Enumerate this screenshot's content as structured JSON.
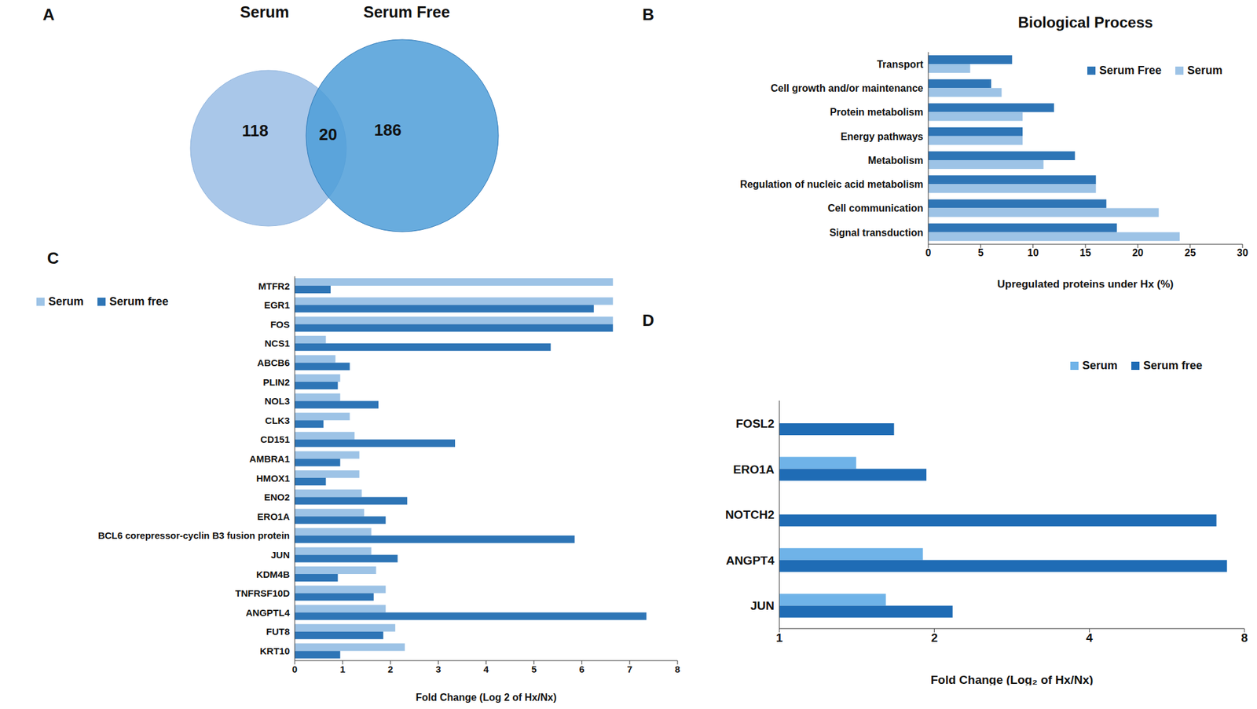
{
  "chart_data": [
    {
      "type": "venn",
      "panel": "A",
      "sets": [
        {
          "name": "Serum",
          "only": 118,
          "color": "#a9c7e9"
        },
        {
          "name": "Serum Free",
          "only": 186,
          "color": "#4d9dd8"
        }
      ],
      "intersection": 20
    },
    {
      "type": "bar",
      "panel": "B",
      "title": "Biological Process",
      "orientation": "horizontal",
      "xlabel": "Upregulated proteins under Hx (%)",
      "categories": [
        "Transport",
        "Cell growth and/or maintenance",
        "Protein metabolism",
        "Energy pathways",
        "Metabolism",
        "Regulation of  nucleic acid metabolism",
        "Cell communication",
        "Signal transduction"
      ],
      "series": [
        {
          "name": "Serum Free",
          "color": "#2e75b6",
          "values": [
            8,
            6,
            12,
            9,
            14,
            16,
            17,
            18
          ]
        },
        {
          "name": "Serum",
          "color": "#9dc3e6",
          "values": [
            4,
            7,
            9,
            9,
            11,
            16,
            22,
            24
          ]
        }
      ],
      "xlim": [
        0,
        30
      ],
      "xticks": [
        0,
        5,
        10,
        15,
        20,
        25,
        30
      ],
      "grid": false,
      "legend": "upper right"
    },
    {
      "type": "bar",
      "panel": "C",
      "orientation": "horizontal",
      "xlabel": "Fold Change (Log 2 of Hx/Nx)",
      "categories": [
        "MTFR2",
        "EGR1",
        "FOS",
        "NCS1",
        "ABCB6",
        "PLIN2",
        "NOL3",
        "CLK3",
        "CD151",
        "AMBRA1",
        "HMOX1",
        "ENO2",
        "ERO1A",
        "BCL6 corepressor-cyclin B3 fusion protein",
        "JUN",
        "KDM4B",
        "TNFRSF10D",
        "ANGPTL4",
        "FUT8",
        "KRT10"
      ],
      "series": [
        {
          "name": "Serum",
          "color": "#9dc3e6",
          "values": [
            6.65,
            6.65,
            6.65,
            0.65,
            0.85,
            0.95,
            0.95,
            1.15,
            1.25,
            1.35,
            1.35,
            1.4,
            1.45,
            1.6,
            1.6,
            1.7,
            1.9,
            1.9,
            2.1,
            2.3
          ]
        },
        {
          "name": "Serum free",
          "color": "#2e75b6",
          "values": [
            0.75,
            6.25,
            6.65,
            5.35,
            1.15,
            0.9,
            1.75,
            0.6,
            3.35,
            0.95,
            0.65,
            2.35,
            1.9,
            5.85,
            2.15,
            0.9,
            1.65,
            7.35,
            1.85,
            0.95
          ]
        }
      ],
      "xlim": [
        0,
        8
      ],
      "xticks": [
        0,
        1,
        2,
        3,
        4,
        5,
        6,
        7,
        8
      ],
      "grid": false,
      "legend": "upper left"
    },
    {
      "type": "bar",
      "panel": "D",
      "orientation": "horizontal",
      "xlabel": "Fold Change (Log₂ of Hx/Nx)",
      "categories": [
        "FOSL2",
        "ERO1A",
        "NOTCH2",
        "ANGPT4",
        "JUN"
      ],
      "series": [
        {
          "name": "Serum",
          "color": "#6fb3e8",
          "values": [
            null,
            1.41,
            null,
            1.9,
            1.61
          ]
        },
        {
          "name": "Serum free",
          "color": "#1f6cb5",
          "values": [
            1.67,
            1.93,
            7.06,
            7.4,
            2.17
          ]
        }
      ],
      "xlim": [
        1,
        8
      ],
      "xticks": [
        1,
        2,
        4,
        8
      ],
      "log": "x",
      "grid": false,
      "legend": "upper right"
    }
  ]
}
